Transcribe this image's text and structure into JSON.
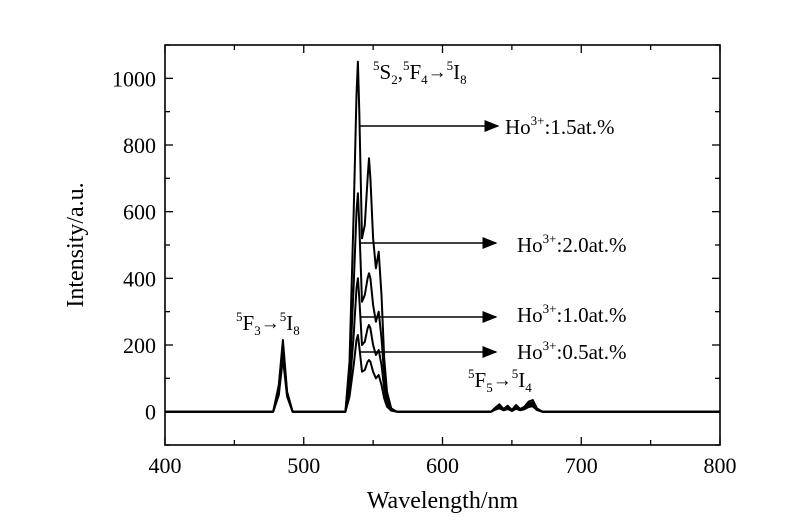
{
  "chart_data": {
    "type": "line",
    "xlabel": "Wavelength/nm",
    "ylabel": "Intensity/a.u.",
    "xlim": [
      400,
      800
    ],
    "ylim": [
      -100,
      1100
    ],
    "x_ticks": [
      400,
      500,
      600,
      700,
      800
    ],
    "y_ticks": [
      0,
      200,
      400,
      600,
      800,
      1000
    ],
    "grid": false,
    "line_color": "#000000",
    "annotations": [
      {
        "base": "F",
        "pre": "5",
        "sub": "3",
        "arrow": "→",
        "base2": "I",
        "pre2": "5",
        "sub2": "8"
      },
      {
        "base": "S",
        "pre": "5",
        "sub": "2",
        "sep": ",",
        "base_b": "F",
        "pre_b": "5",
        "sub_b": "4",
        "arrow": "→",
        "base2": "I",
        "pre2": "5",
        "sub2": "8"
      },
      {
        "base": "F",
        "pre": "5",
        "sub": "5",
        "arrow": "→",
        "base2": "I",
        "pre2": "5",
        "sub2": "4"
      }
    ],
    "series": [
      {
        "name": "Ho3+:1.5at.%",
        "label": {
          "base": "Ho",
          "sup": "3+",
          "rest": ":1.5at.%"
        },
        "peak_x": 539,
        "x": [
          400,
          478,
          482,
          485,
          488,
          492,
          530,
          533,
          536,
          538,
          539,
          540,
          542,
          544,
          546,
          547,
          548,
          550,
          552,
          554,
          556,
          558,
          560,
          563,
          567,
          635,
          638,
          641,
          644,
          647,
          650,
          653,
          656,
          659,
          662,
          665,
          668,
          672,
          800
        ],
        "y": [
          0,
          0,
          80,
          215,
          60,
          0,
          0,
          150,
          600,
          950,
          1050,
          900,
          520,
          560,
          700,
          760,
          700,
          520,
          430,
          480,
          350,
          160,
          60,
          10,
          0,
          0,
          12,
          22,
          8,
          18,
          5,
          20,
          8,
          15,
          30,
          35,
          10,
          0,
          0
        ]
      },
      {
        "name": "Ho3+:2.0at.%",
        "label": {
          "base": "Ho",
          "sup": "3+",
          "rest": ":2.0at.%"
        },
        "peak_x": 539,
        "x": [
          400,
          478,
          482,
          485,
          488,
          492,
          530,
          533,
          536,
          538,
          539,
          540,
          542,
          544,
          546,
          547,
          548,
          550,
          552,
          554,
          556,
          558,
          560,
          563,
          567,
          635,
          638,
          641,
          644,
          647,
          650,
          653,
          656,
          659,
          662,
          665,
          668,
          672,
          800
        ],
        "y": [
          0,
          0,
          70,
          200,
          55,
          0,
          0,
          100,
          380,
          600,
          655,
          560,
          330,
          350,
          400,
          415,
          400,
          320,
          270,
          300,
          220,
          110,
          40,
          8,
          0,
          0,
          10,
          18,
          6,
          14,
          4,
          16,
          6,
          12,
          24,
          28,
          8,
          0,
          0
        ]
      },
      {
        "name": "Ho3+:1.0at.%",
        "label": {
          "base": "Ho",
          "sup": "3+",
          "rest": ":1.0at.%"
        },
        "peak_x": 539,
        "x": [
          400,
          478,
          482,
          485,
          488,
          492,
          530,
          533,
          536,
          538,
          539,
          540,
          542,
          544,
          546,
          547,
          548,
          550,
          552,
          554,
          556,
          558,
          560,
          563,
          567,
          635,
          638,
          641,
          644,
          647,
          650,
          653,
          656,
          659,
          662,
          665,
          668,
          672,
          800
        ],
        "y": [
          0,
          0,
          60,
          180,
          50,
          0,
          0,
          70,
          230,
          370,
          400,
          340,
          200,
          210,
          250,
          260,
          250,
          200,
          170,
          185,
          140,
          70,
          25,
          5,
          0,
          0,
          8,
          14,
          5,
          11,
          3,
          12,
          5,
          9,
          18,
          22,
          6,
          0,
          0
        ]
      },
      {
        "name": "Ho3+:0.5at.%",
        "label": {
          "base": "Ho",
          "sup": "3+",
          "rest": ":0.5at.%"
        },
        "peak_x": 539,
        "x": [
          400,
          478,
          482,
          485,
          488,
          492,
          530,
          533,
          536,
          538,
          539,
          540,
          542,
          544,
          546,
          547,
          548,
          550,
          552,
          554,
          556,
          558,
          560,
          563,
          567,
          635,
          638,
          641,
          644,
          647,
          650,
          653,
          656,
          659,
          662,
          665,
          668,
          672,
          800
        ],
        "y": [
          0,
          0,
          50,
          160,
          45,
          0,
          0,
          45,
          140,
          215,
          230,
          195,
          120,
          125,
          150,
          155,
          150,
          120,
          100,
          110,
          80,
          40,
          15,
          3,
          0,
          0,
          6,
          10,
          4,
          8,
          2,
          9,
          4,
          7,
          14,
          16,
          5,
          0,
          0
        ]
      }
    ]
  }
}
